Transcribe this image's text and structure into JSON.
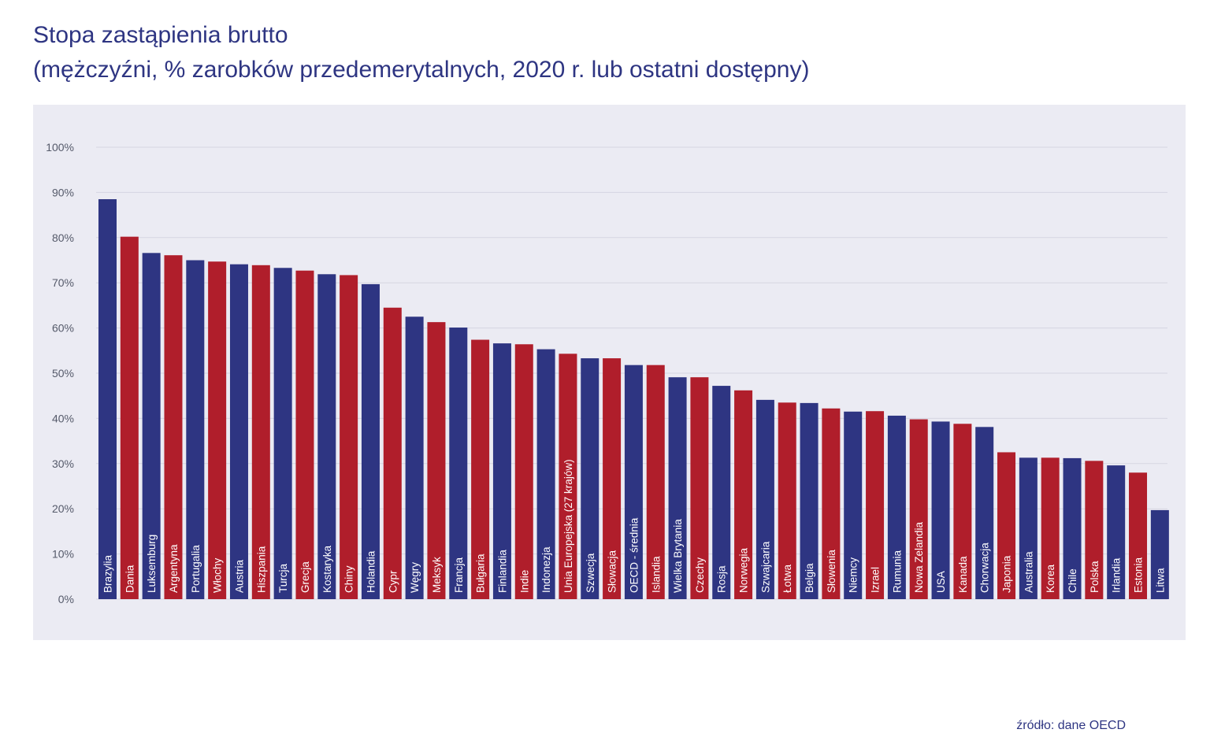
{
  "title": "Stopa zastąpienia brutto",
  "subtitle": "(mężczyźni, % zarobków przedemerytalnych, 2020 r. lub ostatni dostępny)",
  "source": "źródło: dane OECD",
  "colors": {
    "blue": "#2e3582",
    "red": "#b01e2b",
    "panel": "#ebebf3",
    "text": "#2e3582"
  },
  "chart_data": {
    "type": "bar",
    "title": "Stopa zastąpienia brutto",
    "subtitle": "(mężczyźni, % zarobków przedemerytalnych, 2020 r. lub ostatni dostępny)",
    "xlabel": "",
    "ylabel": "",
    "ylim": [
      0,
      100
    ],
    "yticks": [
      "0%",
      "10%",
      "20%",
      "30%",
      "40%",
      "50%",
      "60%",
      "70%",
      "80%",
      "90%",
      "100%"
    ],
    "grid": true,
    "categories": [
      "Brazylia",
      "Dania",
      "Luksemburg",
      "Argentyna",
      "Portugalia",
      "Włochy",
      "Austria",
      "Hiszpania",
      "Turcja",
      "Grecja",
      "Kostaryka",
      "Chiny",
      "Holandia",
      "Cypr",
      "Węgry",
      "Meksyk",
      "Francja",
      "Bułgaria",
      "Finlandia",
      "Indie",
      "Indonezja",
      "Unia Europejska (27 krajów)",
      "Szwecja",
      "Słowacja",
      "OECD - średnia",
      "Islandia",
      "Wielka Brytania",
      "Czechy",
      "Rosja",
      "Norwegia",
      "Szwajcaria",
      "Łotwa",
      "Belgia",
      "Słowenia",
      "Niemcy",
      "Izrael",
      "Rumunia",
      "Nowa Zelandia",
      "USA",
      "Kanada",
      "Chorwacja",
      "Japonia",
      "Australia",
      "Korea",
      "Chile",
      "Polska",
      "Irlandia",
      "Estonia",
      "Litwa"
    ],
    "values": [
      88.5,
      80.2,
      76.6,
      76.1,
      75.0,
      74.7,
      74.1,
      73.9,
      73.3,
      72.7,
      71.9,
      71.7,
      69.7,
      64.5,
      62.5,
      61.3,
      60.1,
      57.4,
      56.6,
      56.4,
      55.3,
      54.3,
      53.3,
      53.3,
      51.8,
      51.8,
      49.1,
      49.1,
      47.2,
      46.2,
      44.1,
      43.5,
      43.4,
      42.2,
      41.5,
      41.6,
      40.6,
      39.8,
      39.3,
      38.8,
      38.1,
      32.5,
      31.3,
      31.3,
      31.2,
      30.6,
      29.6,
      28.0,
      19.7
    ],
    "colors": [
      "blue",
      "red",
      "blue",
      "red",
      "blue",
      "red",
      "blue",
      "red",
      "blue",
      "red",
      "blue",
      "red",
      "blue",
      "red",
      "blue",
      "red",
      "blue",
      "red",
      "blue",
      "red",
      "blue",
      "red",
      "blue",
      "red",
      "blue",
      "red",
      "blue",
      "red",
      "blue",
      "red",
      "blue",
      "red",
      "blue",
      "red",
      "blue",
      "red",
      "blue",
      "red",
      "blue",
      "red",
      "blue",
      "red",
      "blue",
      "red",
      "blue",
      "red",
      "blue",
      "red",
      "blue"
    ]
  }
}
